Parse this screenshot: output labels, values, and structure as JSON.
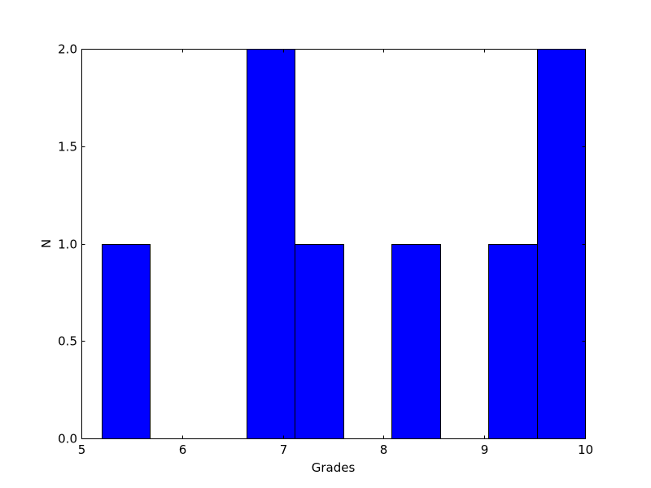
{
  "chart_data": {
    "type": "bar",
    "subtype": "histogram",
    "xlabel": "Grades",
    "ylabel": "N",
    "xlim": [
      5,
      10
    ],
    "ylim": [
      0,
      2
    ],
    "xticks": [
      5,
      6,
      7,
      8,
      9,
      10
    ],
    "xtick_labels": [
      "5",
      "6",
      "7",
      "8",
      "9",
      "10"
    ],
    "yticks": [
      0,
      0.5,
      1,
      1.5,
      2
    ],
    "ytick_labels": [
      "0.0",
      "0.5",
      "1.0",
      "1.5",
      "2.0"
    ],
    "bins": [
      {
        "start": 5.2,
        "end": 5.68,
        "count": 1
      },
      {
        "start": 5.68,
        "end": 6.16,
        "count": 0
      },
      {
        "start": 6.16,
        "end": 6.64,
        "count": 0
      },
      {
        "start": 6.64,
        "end": 7.12,
        "count": 2
      },
      {
        "start": 7.12,
        "end": 7.6,
        "count": 1
      },
      {
        "start": 7.6,
        "end": 8.08,
        "count": 0
      },
      {
        "start": 8.08,
        "end": 8.56,
        "count": 1
      },
      {
        "start": 8.56,
        "end": 9.04,
        "count": 0
      },
      {
        "start": 9.04,
        "end": 9.52,
        "count": 1
      },
      {
        "start": 9.52,
        "end": 10.0,
        "count": 2
      }
    ],
    "bar_color": "#0000ff",
    "edge_color": "#000000",
    "grid": false,
    "legend": "none"
  }
}
